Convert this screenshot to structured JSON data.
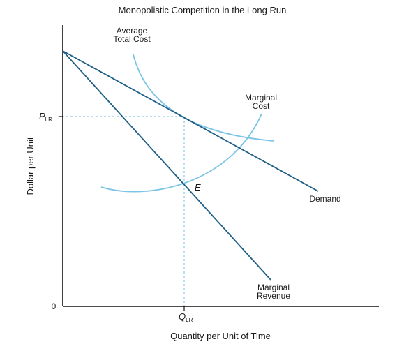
{
  "title": "Monopolistic Competition in the Long Run",
  "y_axis_label": "Dollar per Unit",
  "x_axis_label": "Quantity per Unit of Time",
  "origin_label": "0",
  "price_label": {
    "main": "P",
    "sub": "LR"
  },
  "quantity_label": {
    "main": "Q",
    "sub": "LR"
  },
  "equilibrium_label": "E",
  "curves": {
    "atc": {
      "line1": "Average",
      "line2": "Total Cost"
    },
    "mc": {
      "line1": "Marginal",
      "line2": "Cost"
    },
    "demand": {
      "line1": "Demand"
    },
    "mr": {
      "line1": "Marginal",
      "line2": "Revenue"
    }
  },
  "colors": {
    "axis": "#111111",
    "demand": "#1f5f86",
    "marginal_revenue": "#1f5f86",
    "average_total_cost": "#7cc4e6",
    "marginal_cost": "#7cc4e6",
    "guide": "#6ec0e0"
  }
}
